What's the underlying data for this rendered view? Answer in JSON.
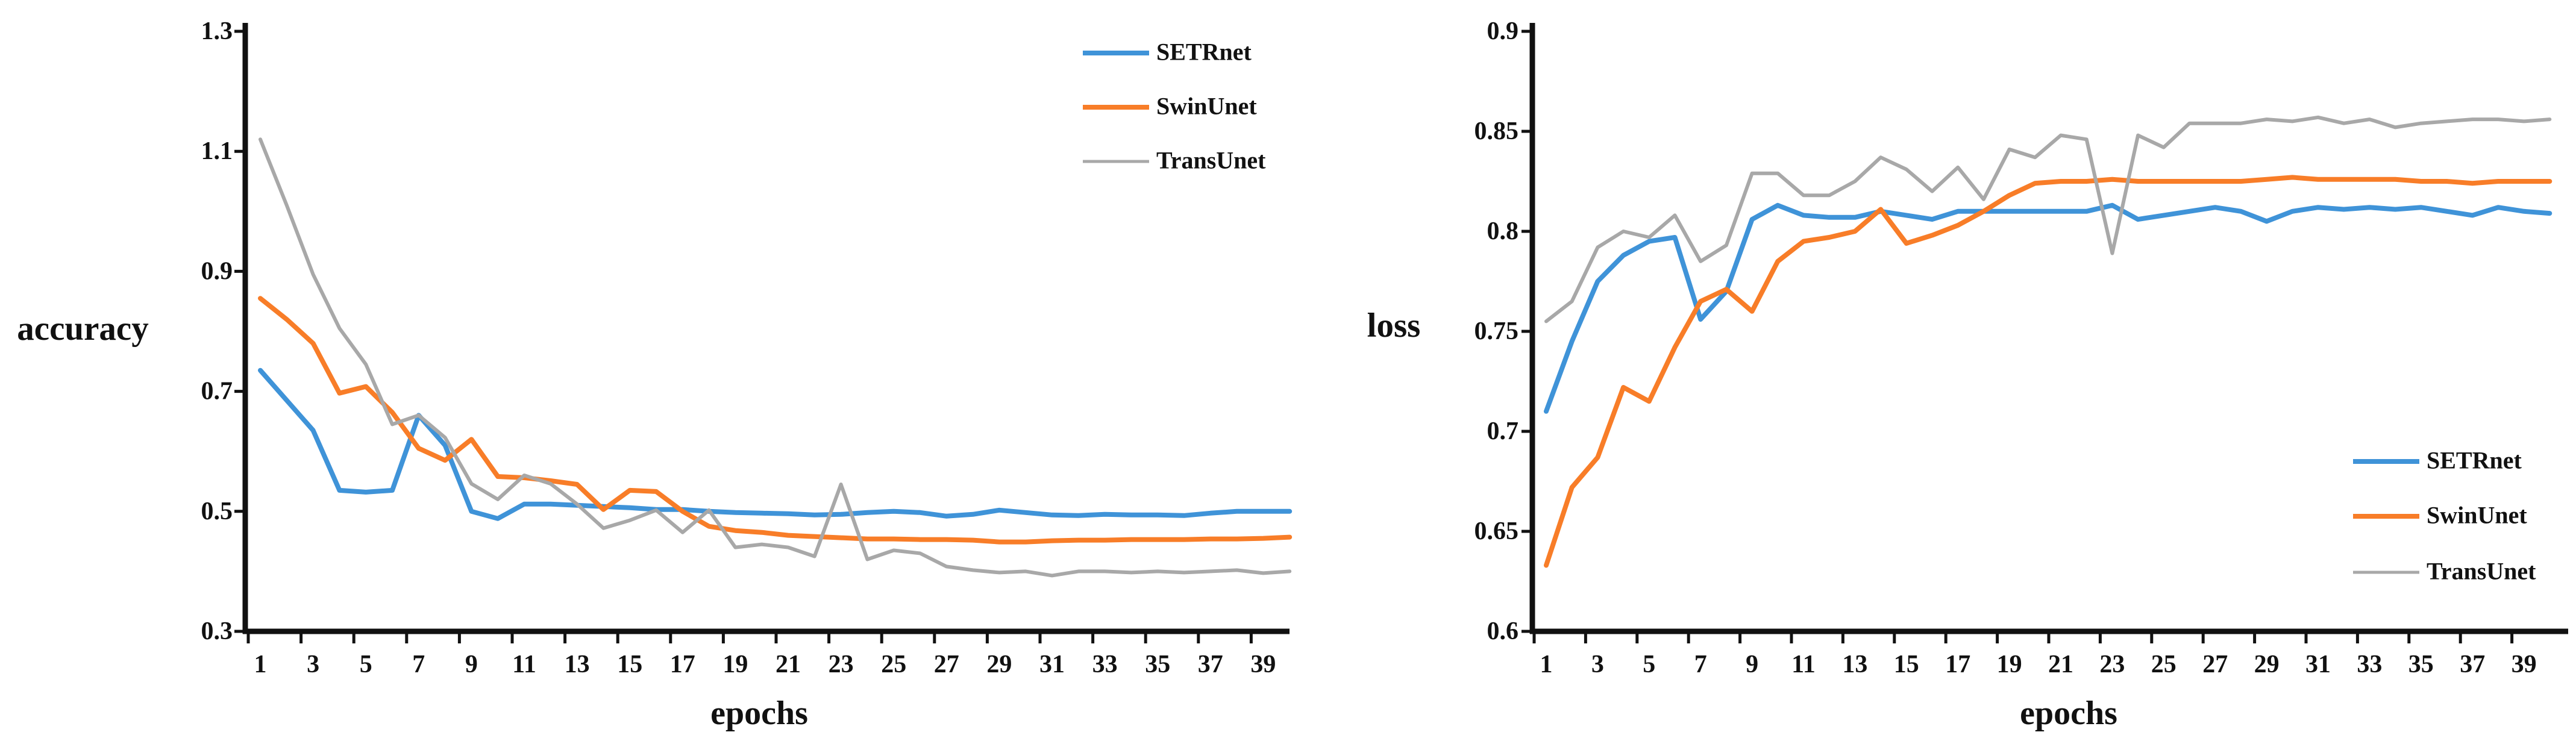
{
  "figure": {
    "background": "#ffffff"
  },
  "chart_data": [
    {
      "type": "line",
      "id": "accuracy",
      "title": "",
      "ylabel": "accuracy",
      "xlabel": "epochs",
      "grid": false,
      "legend_position": "top-right",
      "ylim": [
        0.3,
        1.3
      ],
      "yticks": [
        1.3,
        1.1,
        0.9,
        0.7,
        0.5,
        0.3
      ],
      "ytick_labels": [
        "1.3",
        "1.1",
        "0.9",
        "0.7",
        "0.5",
        "0.3"
      ],
      "x": [
        1,
        2,
        3,
        4,
        5,
        6,
        7,
        8,
        9,
        10,
        11,
        12,
        13,
        14,
        15,
        16,
        17,
        18,
        19,
        20,
        21,
        22,
        23,
        24,
        25,
        26,
        27,
        28,
        29,
        30,
        31,
        32,
        33,
        34,
        35,
        36,
        37,
        38,
        39,
        40
      ],
      "xtick_labels": [
        "1",
        "3",
        "5",
        "7",
        "9",
        "11",
        "13",
        "15",
        "17",
        "19",
        "21",
        "23",
        "25",
        "27",
        "29",
        "31",
        "33",
        "35",
        "37",
        "39"
      ],
      "series": [
        {
          "name": "SETRnet",
          "color": "#3f93d8",
          "values": [
            0.735,
            0.685,
            0.635,
            0.535,
            0.532,
            0.535,
            0.66,
            0.61,
            0.5,
            0.488,
            0.512,
            0.512,
            0.51,
            0.508,
            0.506,
            0.503,
            0.503,
            0.5,
            0.498,
            0.497,
            0.496,
            0.494,
            0.495,
            0.498,
            0.5,
            0.498,
            0.492,
            0.495,
            0.502,
            0.498,
            0.494,
            0.493,
            0.495,
            0.494,
            0.494,
            0.493,
            0.497,
            0.5,
            0.5,
            0.5
          ]
        },
        {
          "name": "SwinUnet",
          "color": "#f87d28",
          "values": [
            0.855,
            0.82,
            0.78,
            0.697,
            0.708,
            0.665,
            0.605,
            0.585,
            0.62,
            0.558,
            0.556,
            0.551,
            0.545,
            0.503,
            0.535,
            0.533,
            0.5,
            0.475,
            0.468,
            0.465,
            0.46,
            0.458,
            0.456,
            0.454,
            0.454,
            0.453,
            0.453,
            0.452,
            0.449,
            0.449,
            0.451,
            0.452,
            0.452,
            0.453,
            0.453,
            0.453,
            0.454,
            0.454,
            0.455,
            0.457
          ]
        },
        {
          "name": "TransUnet",
          "color": "#a8a8a8",
          "values": [
            1.12,
            1.01,
            0.895,
            0.805,
            0.745,
            0.645,
            0.66,
            0.623,
            0.546,
            0.52,
            0.56,
            0.546,
            0.512,
            0.472,
            0.485,
            0.502,
            0.465,
            0.502,
            0.44,
            0.445,
            0.44,
            0.425,
            0.545,
            0.42,
            0.435,
            0.43,
            0.408,
            0.402,
            0.398,
            0.4,
            0.393,
            0.4,
            0.4,
            0.398,
            0.4,
            0.398,
            0.4,
            0.402,
            0.397,
            0.4
          ]
        }
      ]
    },
    {
      "type": "line",
      "id": "loss",
      "title": "",
      "ylabel": "loss",
      "xlabel": "epochs",
      "grid": false,
      "legend_position": "middle-right",
      "ylim": [
        0.6,
        0.9
      ],
      "yticks": [
        0.9,
        0.85,
        0.8,
        0.75,
        0.7,
        0.65,
        0.6
      ],
      "ytick_labels": [
        "0.9",
        "0.85",
        "0.8",
        "0.75",
        "0.7",
        "0.65",
        "0.6"
      ],
      "x": [
        1,
        2,
        3,
        4,
        5,
        6,
        7,
        8,
        9,
        10,
        11,
        12,
        13,
        14,
        15,
        16,
        17,
        18,
        19,
        20,
        21,
        22,
        23,
        24,
        25,
        26,
        27,
        28,
        29,
        30,
        31,
        32,
        33,
        34,
        35,
        36,
        37,
        38,
        39,
        40
      ],
      "xtick_labels": [
        "1",
        "3",
        "5",
        "7",
        "9",
        "11",
        "13",
        "15",
        "17",
        "19",
        "21",
        "23",
        "25",
        "27",
        "29",
        "31",
        "33",
        "35",
        "37",
        "39"
      ],
      "series": [
        {
          "name": "SETRnet",
          "color": "#3f93d8",
          "values": [
            0.71,
            0.745,
            0.775,
            0.788,
            0.795,
            0.797,
            0.756,
            0.77,
            0.806,
            0.813,
            0.808,
            0.807,
            0.807,
            0.81,
            0.808,
            0.806,
            0.81,
            0.81,
            0.81,
            0.81,
            0.81,
            0.81,
            0.813,
            0.806,
            0.808,
            0.81,
            0.812,
            0.81,
            0.805,
            0.81,
            0.812,
            0.811,
            0.812,
            0.811,
            0.812,
            0.81,
            0.808,
            0.812,
            0.81,
            0.809
          ]
        },
        {
          "name": "SwinUnet",
          "color": "#f87d28",
          "values": [
            0.633,
            0.672,
            0.687,
            0.722,
            0.715,
            0.742,
            0.765,
            0.771,
            0.76,
            0.785,
            0.795,
            0.797,
            0.8,
            0.811,
            0.794,
            0.798,
            0.803,
            0.81,
            0.818,
            0.824,
            0.825,
            0.825,
            0.826,
            0.825,
            0.825,
            0.825,
            0.825,
            0.825,
            0.826,
            0.827,
            0.826,
            0.826,
            0.826,
            0.826,
            0.825,
            0.825,
            0.824,
            0.825,
            0.825,
            0.825
          ]
        },
        {
          "name": "TransUnet",
          "color": "#a8a8a8",
          "values": [
            0.755,
            0.765,
            0.792,
            0.8,
            0.797,
            0.808,
            0.785,
            0.793,
            0.829,
            0.829,
            0.818,
            0.818,
            0.825,
            0.837,
            0.831,
            0.82,
            0.832,
            0.816,
            0.841,
            0.837,
            0.848,
            0.846,
            0.789,
            0.848,
            0.842,
            0.854,
            0.854,
            0.854,
            0.856,
            0.855,
            0.857,
            0.854,
            0.856,
            0.852,
            0.854,
            0.855,
            0.856,
            0.856,
            0.855,
            0.856
          ]
        }
      ]
    }
  ]
}
